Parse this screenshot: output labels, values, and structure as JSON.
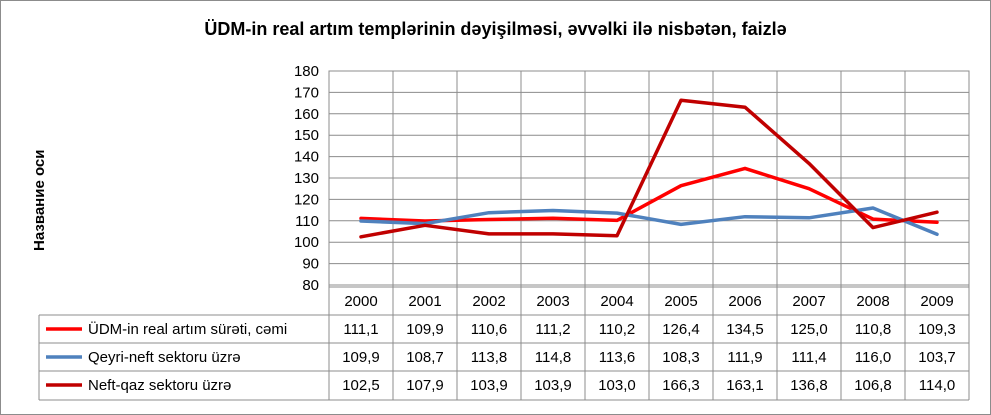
{
  "chart_data": {
    "type": "line",
    "title": "ÜDM-in real artım templərinin dəyişilməsi, əvvəlki ilə nisbətən, faizlə",
    "ylabel": "Название оси",
    "xlabel": "",
    "ylim": [
      80,
      180
    ],
    "yticks": [
      80,
      90,
      100,
      110,
      120,
      130,
      140,
      150,
      160,
      170,
      180
    ],
    "grid": true,
    "legend": "data-table",
    "categories": [
      "2000",
      "2001",
      "2002",
      "2003",
      "2004",
      "2005",
      "2006",
      "2007",
      "2008",
      "2009"
    ],
    "series": [
      {
        "name": "ÜDM-in real artım sürəti, cəmi",
        "color": "#ff0000",
        "values": [
          111.1,
          109.9,
          110.6,
          111.2,
          110.2,
          126.4,
          134.5,
          125.0,
          110.8,
          109.3
        ],
        "labels": [
          "111,1",
          "109,9",
          "110,6",
          "111,2",
          "110,2",
          "126,4",
          "134,5",
          "125,0",
          "110,8",
          "109,3"
        ]
      },
      {
        "name": "Qeyri-neft sektoru üzrə",
        "color": "#4f81bd",
        "values": [
          109.9,
          108.7,
          113.8,
          114.8,
          113.6,
          108.3,
          111.9,
          111.4,
          116.0,
          103.7
        ],
        "labels": [
          "109,9",
          "108,7",
          "113,8",
          "114,8",
          "113,6",
          "108,3",
          "111,9",
          "111,4",
          "116,0",
          "103,7"
        ]
      },
      {
        "name": "Neft-qaz sektoru üzrə",
        "color": "#c00000",
        "values": [
          102.5,
          107.9,
          103.9,
          103.9,
          103.0,
          166.3,
          163.1,
          136.8,
          106.8,
          114.0
        ],
        "labels": [
          "102,5",
          "107,9",
          "103,9",
          "103,9",
          "103,0",
          "166,3",
          "163,1",
          "136,8",
          "106,8",
          "114,0"
        ]
      }
    ]
  }
}
